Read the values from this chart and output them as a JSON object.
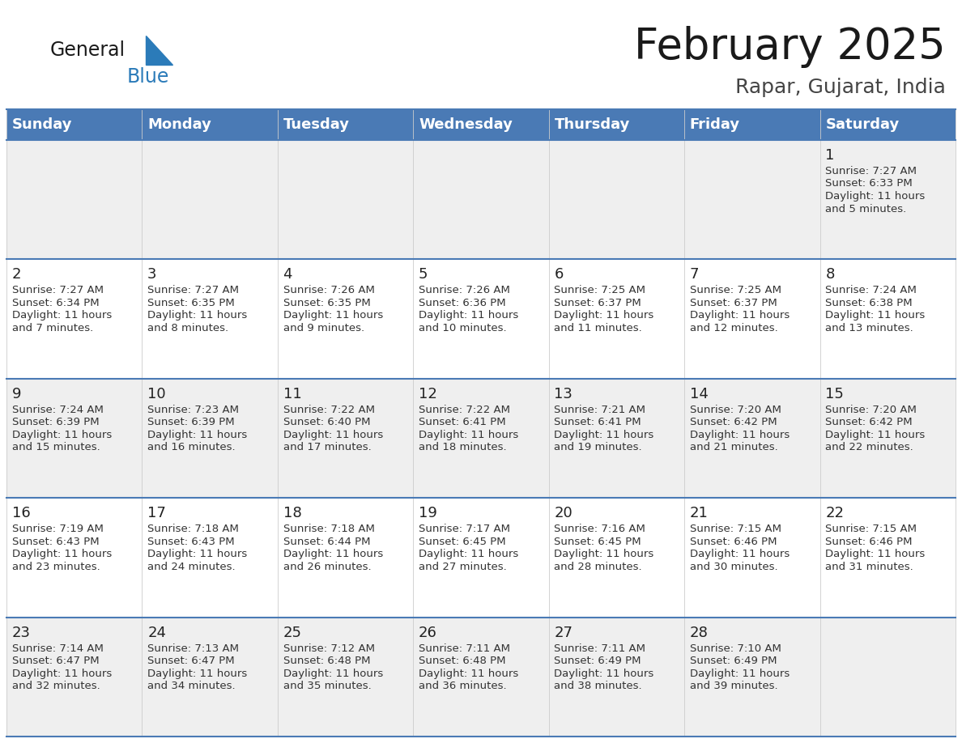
{
  "title": "February 2025",
  "subtitle": "Rapar, Gujarat, India",
  "days_of_week": [
    "Sunday",
    "Monday",
    "Tuesday",
    "Wednesday",
    "Thursday",
    "Friday",
    "Saturday"
  ],
  "header_bg": "#4a7ab5",
  "header_text": "#ffffff",
  "cell_bg_odd": "#efefef",
  "cell_bg_even": "#ffffff",
  "text_color": "#333333",
  "day_number_color": "#222222",
  "line_color": "#4a7ab5",
  "logo_general_color": "#1a1a1a",
  "logo_blue_color": "#2b7bb9",
  "logo_triangle_color": "#2b7bb9",
  "calendar_data": [
    [
      null,
      null,
      null,
      null,
      null,
      null,
      1
    ],
    [
      2,
      3,
      4,
      5,
      6,
      7,
      8
    ],
    [
      9,
      10,
      11,
      12,
      13,
      14,
      15
    ],
    [
      16,
      17,
      18,
      19,
      20,
      21,
      22
    ],
    [
      23,
      24,
      25,
      26,
      27,
      28,
      null
    ]
  ],
  "sunrise_data": {
    "1": "7:27 AM",
    "2": "7:27 AM",
    "3": "7:27 AM",
    "4": "7:26 AM",
    "5": "7:26 AM",
    "6": "7:25 AM",
    "7": "7:25 AM",
    "8": "7:24 AM",
    "9": "7:24 AM",
    "10": "7:23 AM",
    "11": "7:22 AM",
    "12": "7:22 AM",
    "13": "7:21 AM",
    "14": "7:20 AM",
    "15": "7:20 AM",
    "16": "7:19 AM",
    "17": "7:18 AM",
    "18": "7:18 AM",
    "19": "7:17 AM",
    "20": "7:16 AM",
    "21": "7:15 AM",
    "22": "7:15 AM",
    "23": "7:14 AM",
    "24": "7:13 AM",
    "25": "7:12 AM",
    "26": "7:11 AM",
    "27": "7:11 AM",
    "28": "7:10 AM"
  },
  "sunset_data": {
    "1": "6:33 PM",
    "2": "6:34 PM",
    "3": "6:35 PM",
    "4": "6:35 PM",
    "5": "6:36 PM",
    "6": "6:37 PM",
    "7": "6:37 PM",
    "8": "6:38 PM",
    "9": "6:39 PM",
    "10": "6:39 PM",
    "11": "6:40 PM",
    "12": "6:41 PM",
    "13": "6:41 PM",
    "14": "6:42 PM",
    "15": "6:42 PM",
    "16": "6:43 PM",
    "17": "6:43 PM",
    "18": "6:44 PM",
    "19": "6:45 PM",
    "20": "6:45 PM",
    "21": "6:46 PM",
    "22": "6:46 PM",
    "23": "6:47 PM",
    "24": "6:47 PM",
    "25": "6:48 PM",
    "26": "6:48 PM",
    "27": "6:49 PM",
    "28": "6:49 PM"
  },
  "daylight_minutes": {
    "1": 5,
    "2": 7,
    "3": 8,
    "4": 9,
    "5": 10,
    "6": 11,
    "7": 12,
    "8": 13,
    "9": 15,
    "10": 16,
    "11": 17,
    "12": 18,
    "13": 19,
    "14": 21,
    "15": 22,
    "16": 23,
    "17": 24,
    "18": 26,
    "19": 27,
    "20": 28,
    "21": 30,
    "22": 31,
    "23": 32,
    "24": 34,
    "25": 35,
    "26": 36,
    "27": 38,
    "28": 39
  }
}
